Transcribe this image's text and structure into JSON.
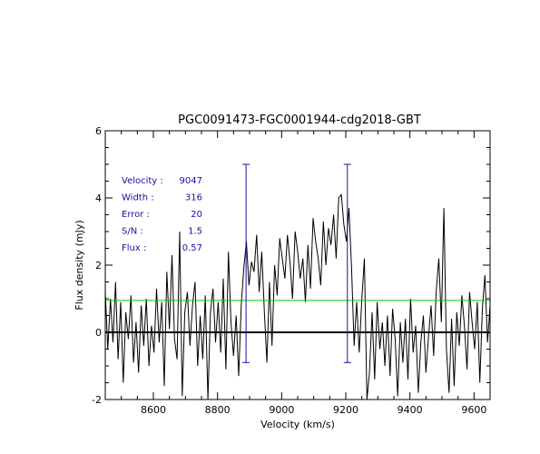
{
  "chart_data": {
    "type": "line",
    "title": "PGC0091473-FGC0001944-cdg2018-GBT",
    "xlabel": "Velocity (km/s)",
    "ylabel": "Flux density (mJy)",
    "xlim": [
      8450,
      9650
    ],
    "ylim": [
      -2,
      6
    ],
    "xticks": [
      8600,
      8800,
      9000,
      9200,
      9400,
      9600
    ],
    "yticks": [
      -2,
      0,
      2,
      4,
      6
    ],
    "grid": false,
    "series": [
      {
        "color": "#000000",
        "x": [
          8450,
          8458,
          8466,
          8474,
          8482,
          8490,
          8498,
          8506,
          8514,
          8522,
          8530,
          8538,
          8546,
          8554,
          8562,
          8570,
          8578,
          8586,
          8594,
          8602,
          8610,
          8618,
          8626,
          8634,
          8642,
          8650,
          8658,
          8666,
          8674,
          8682,
          8690,
          8698,
          8706,
          8714,
          8722,
          8730,
          8738,
          8746,
          8754,
          8762,
          8770,
          8778,
          8786,
          8794,
          8802,
          8810,
          8818,
          8826,
          8834,
          8842,
          8850,
          8858,
          8866,
          8874,
          8882,
          8890,
          8898,
          8906,
          8914,
          8922,
          8930,
          8938,
          8946,
          8954,
          8962,
          8970,
          8978,
          8986,
          8994,
          9002,
          9010,
          9018,
          9026,
          9034,
          9042,
          9050,
          9058,
          9066,
          9074,
          9082,
          9090,
          9098,
          9106,
          9114,
          9122,
          9130,
          9138,
          9146,
          9154,
          9162,
          9170,
          9178,
          9186,
          9194,
          9202,
          9210,
          9218,
          9226,
          9234,
          9242,
          9250,
          9258,
          9266,
          9274,
          9282,
          9290,
          9298,
          9306,
          9314,
          9322,
          9330,
          9338,
          9346,
          9354,
          9362,
          9370,
          9378,
          9386,
          9394,
          9402,
          9410,
          9418,
          9426,
          9434,
          9442,
          9450,
          9458,
          9466,
          9474,
          9482,
          9490,
          9498,
          9506,
          9514,
          9522,
          9530,
          9538,
          9546,
          9554,
          9562,
          9570,
          9578,
          9586,
          9594,
          9602,
          9610,
          9618,
          9626,
          9634,
          9642,
          9650
        ],
        "y": [
          1.2,
          -0.5,
          1.0,
          -0.3,
          1.5,
          -0.8,
          0.9,
          -1.5,
          0.6,
          -0.2,
          1.1,
          -0.9,
          0.3,
          -1.2,
          0.8,
          -0.4,
          1.0,
          -1.0,
          0.2,
          -0.6,
          1.3,
          -0.3,
          0.9,
          -1.6,
          1.8,
          0.1,
          2.3,
          -0.2,
          -0.8,
          3.0,
          -1.9,
          0.6,
          1.2,
          -0.4,
          0.8,
          1.5,
          -1.0,
          0.5,
          -0.8,
          1.1,
          -2.0,
          0.6,
          1.3,
          -0.3,
          0.9,
          -0.6,
          1.6,
          -1.1,
          2.4,
          0.3,
          -0.7,
          0.5,
          -1.3,
          0.8,
          1.9,
          2.7,
          1.4,
          2.1,
          1.8,
          2.9,
          1.2,
          2.4,
          0.6,
          -0.9,
          1.5,
          -0.4,
          2.0,
          1.1,
          2.8,
          2.2,
          1.6,
          2.9,
          2.1,
          1.0,
          3.0,
          2.4,
          1.6,
          2.2,
          0.9,
          2.6,
          1.3,
          3.4,
          2.7,
          2.2,
          1.4,
          3.3,
          2.0,
          3.1,
          2.6,
          3.5,
          2.2,
          4.0,
          4.1,
          3.2,
          2.7,
          3.7,
          1.9,
          -0.4,
          0.9,
          -0.6,
          1.0,
          2.2,
          -2.0,
          -1.2,
          0.6,
          -1.4,
          0.9,
          -0.5,
          0.3,
          -1.0,
          0.5,
          -1.3,
          0.7,
          -0.2,
          -1.9,
          0.3,
          -0.9,
          0.4,
          -1.4,
          1.0,
          -0.6,
          0.2,
          -1.8,
          -0.3,
          0.5,
          -1.2,
          -0.1,
          0.8,
          -0.7,
          1.2,
          2.2,
          0.3,
          3.7,
          -0.5,
          -1.8,
          0.4,
          -1.6,
          0.6,
          -0.4,
          1.1,
          0.2,
          -1.1,
          1.2,
          0.3,
          -0.5,
          0.9,
          -1.5,
          0.7,
          1.7,
          -0.3,
          0.8
        ]
      },
      {
        "color": "#00cc00",
        "x": [
          8450,
          9650
        ],
        "y": [
          0.95,
          0.95
        ]
      },
      {
        "color": "#000000",
        "x": [
          8450,
          9650
        ],
        "y": [
          0,
          0
        ]
      }
    ],
    "markers": [
      {
        "color": "#1a10a0",
        "x": 8889,
        "y_top": 5.0,
        "y_bottom": -0.9
      },
      {
        "color": "#1a10a0",
        "x": 9205,
        "y_top": 5.0,
        "y_bottom": -0.9
      }
    ],
    "annotations": [
      {
        "label": "Velocity :",
        "value": "9047"
      },
      {
        "label": "Width :",
        "value": "316"
      },
      {
        "label": "Error :",
        "value": "20"
      },
      {
        "label": "S/N :",
        "value": "1.5"
      },
      {
        "label": "Flux :",
        "value": "0.57"
      }
    ]
  }
}
